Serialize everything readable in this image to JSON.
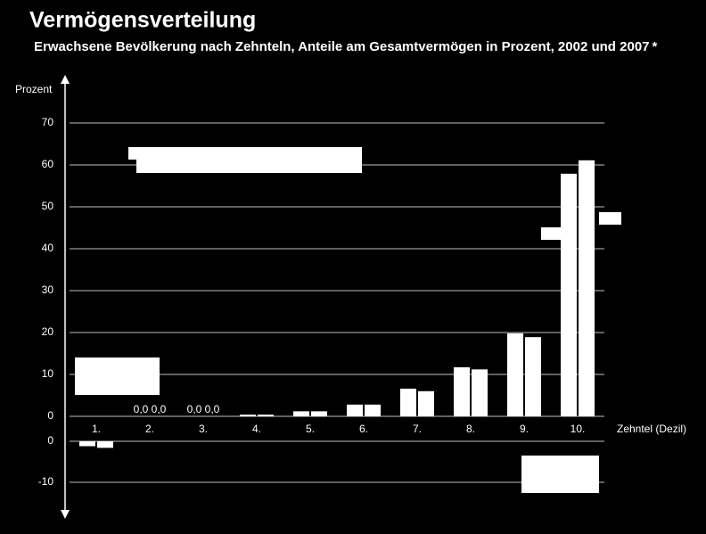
{
  "chart_data": {
    "type": "bar",
    "title": "Vermögensverteilung",
    "subtitle": "Erwachsene Bevölkerung nach Zehnteln, Anteile am Gesamtvermögen in Prozent, 2002 und 2007 *",
    "y_label": "Prozent",
    "x_label": "Zehntel (Dezil)",
    "categories": [
      "1.",
      "2.",
      "3.",
      "4.",
      "5.",
      "6.",
      "7.",
      "8.",
      "9.",
      "10."
    ],
    "series": [
      {
        "color": "#ffffff",
        "values": [
          -1.2,
          0.0,
          0.0,
          0.4,
          1.2,
          2.8,
          6.6,
          11.7,
          19.8,
          57.9
        ],
        "value_labels": [
          null,
          "0,0",
          "0,0",
          null,
          null,
          null,
          null,
          null,
          null,
          null
        ]
      },
      {
        "color": "#ffffff",
        "values": [
          -1.6,
          0.0,
          0.0,
          0.4,
          1.2,
          2.8,
          6.0,
          11.2,
          18.9,
          61.1
        ],
        "value_labels": [
          null,
          "0,0",
          "0,0",
          null,
          null,
          null,
          null,
          null,
          null,
          null
        ]
      }
    ],
    "ylim": [
      0,
      70
    ],
    "yticks": [
      0,
      10,
      20,
      30,
      40,
      50,
      60,
      70
    ],
    "lower_ylim": [
      -10,
      0
    ],
    "lower_yticks": [
      0,
      -10
    ],
    "grid": true
  }
}
